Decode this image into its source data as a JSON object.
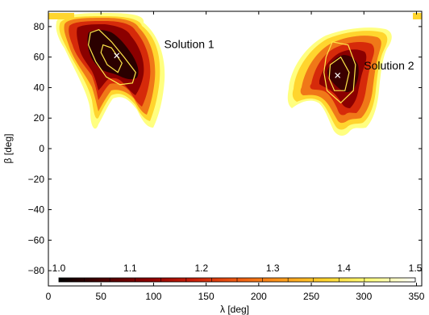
{
  "chart_data": {
    "type": "heatmap",
    "title": "",
    "xlabel": "λ [deg]",
    "ylabel": "β [deg]",
    "xlim": [
      0,
      355
    ],
    "ylim": [
      -90,
      90
    ],
    "xticks": [
      0,
      50,
      100,
      150,
      200,
      250,
      300,
      350
    ],
    "yticks": [
      -80,
      -60,
      -40,
      -20,
      0,
      20,
      40,
      60,
      80
    ],
    "grid": false,
    "colorbar": {
      "location": "bottom-inside",
      "ticks": [
        "1.0",
        "1.1",
        "1.2",
        "1.3",
        "1.4",
        "1.5"
      ],
      "range": [
        1.0,
        1.5
      ],
      "colormap": [
        "#000000",
        "#4a0000",
        "#8b0000",
        "#c81e0a",
        "#ee5a12",
        "#fc9a1c",
        "#ffd52e",
        "#ffff80",
        "#ffffff"
      ]
    },
    "regions": [
      {
        "name": "Solution 1",
        "marker": [
          65,
          61
        ],
        "core_polygon": [
          [
            42,
            68
          ],
          [
            55,
            76
          ],
          [
            72,
            66
          ],
          [
            90,
            50
          ],
          [
            82,
            43
          ],
          [
            62,
            42
          ],
          [
            45,
            55
          ]
        ],
        "contours": [
          [
            [
              40,
              76
            ],
            [
              48,
              78
            ],
            [
              60,
              70
            ],
            [
              72,
              60
            ],
            [
              83,
              50
            ],
            [
              80,
              43
            ],
            [
              68,
              42
            ],
            [
              55,
              47
            ],
            [
              45,
              57
            ],
            [
              38,
              68
            ]
          ],
          [
            [
              52,
              68
            ],
            [
              60,
              66
            ],
            [
              70,
              56
            ],
            [
              66,
              50
            ],
            [
              56,
              55
            ],
            [
              50,
              63
            ]
          ]
        ]
      },
      {
        "name": "Solution 2",
        "marker": [
          275,
          48
        ],
        "core_polygon": [
          [
            262,
            60
          ],
          [
            275,
            68
          ],
          [
            292,
            54
          ],
          [
            290,
            38
          ],
          [
            276,
            30
          ],
          [
            264,
            38
          ],
          [
            258,
            50
          ]
        ],
        "contours": [
          [
            [
              264,
              60
            ],
            [
              270,
              70
            ],
            [
              285,
              68
            ],
            [
              292,
              55
            ],
            [
              290,
              38
            ],
            [
              278,
              30
            ],
            [
              265,
              38
            ],
            [
              262,
              50
            ]
          ],
          [
            [
              268,
              55
            ],
            [
              278,
              60
            ],
            [
              286,
              50
            ],
            [
              282,
              38
            ],
            [
              272,
              38
            ],
            [
              267,
              46
            ]
          ]
        ]
      }
    ],
    "annotations": [
      {
        "text": "Solution 1",
        "at": [
          110,
          66
        ]
      },
      {
        "text": "Solution 2",
        "at": [
          300,
          52
        ]
      }
    ]
  }
}
